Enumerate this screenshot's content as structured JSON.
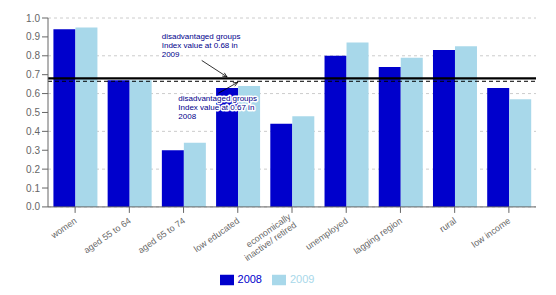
{
  "chart_data": {
    "type": "bar",
    "categories": [
      "women",
      "aged 55 to 64",
      "aged 65 to 74",
      "low educated",
      "economically\ninactive/ retired",
      "unemployed",
      "lagging region",
      "rural",
      "low income"
    ],
    "series": [
      {
        "name": "2008",
        "color": "#0000CC",
        "values": [
          0.94,
          0.67,
          0.3,
          0.63,
          0.44,
          0.8,
          0.74,
          0.83,
          0.63
        ]
      },
      {
        "name": "2009",
        "color": "#A8D8EA",
        "values": [
          0.95,
          0.67,
          0.34,
          0.64,
          0.48,
          0.87,
          0.79,
          0.85,
          0.57
        ]
      }
    ],
    "ylim": [
      0,
      1.0
    ],
    "yticks": [
      {
        "value": 0,
        "label": "0.0"
      },
      0.1,
      0.2,
      0.3,
      0.4,
      0.5,
      0.6,
      0.7,
      0.8,
      0.9,
      {
        "value": 1.0,
        "label": "1.0"
      }
    ],
    "grid": true,
    "legend": "bottom",
    "hlines": [
      {
        "y": 0.68,
        "line_style": "solid",
        "color": "#000000"
      },
      {
        "y": 0.665,
        "line_style": "dashed",
        "color": "#000000"
      }
    ],
    "annotations": [
      {
        "text": "disadvantaged groups\nIndex value at 0.68 in\n2009",
        "y": 0.68,
        "color": "#00008B"
      },
      {
        "text": "disadvantaged groups\nIndex value at 0.67 in\n2008",
        "y": 0.665,
        "color": "#00008B"
      }
    ]
  }
}
